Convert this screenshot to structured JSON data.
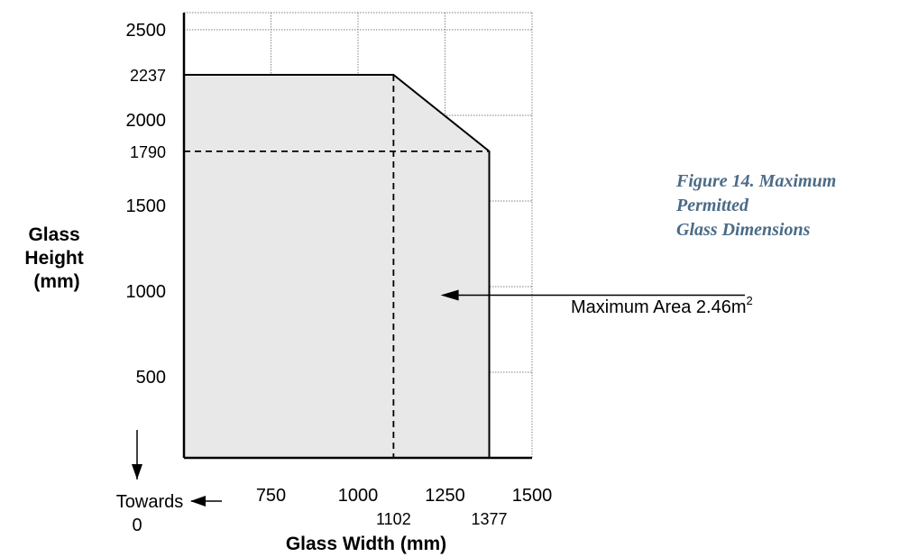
{
  "caption": {
    "line1": "Figure 14. Maximum Permitted",
    "line2": "Glass Dimensions"
  },
  "chart_data": {
    "type": "area",
    "title": "",
    "xlabel": "Glass Width (mm)",
    "ylabel_lines": [
      "Glass",
      "Height",
      "(mm)"
    ],
    "xlim": [
      500,
      1500
    ],
    "ylim": [
      0,
      2600
    ],
    "x_ticks": [
      {
        "value": 750,
        "label": "750"
      },
      {
        "value": 1000,
        "label": "1000"
      },
      {
        "value": 1250,
        "label": "1250"
      },
      {
        "value": 1500,
        "label": "1500"
      }
    ],
    "x_sub_ticks": [
      {
        "value": 1102,
        "label": "1102"
      },
      {
        "value": 1377,
        "label": "1377"
      }
    ],
    "y_ticks": [
      {
        "value": 500,
        "label": "500"
      },
      {
        "value": 1000,
        "label": "1000"
      },
      {
        "value": 1500,
        "label": "1500"
      },
      {
        "value": 1790,
        "label": "1790"
      },
      {
        "value": 2000,
        "label": "2000"
      },
      {
        "value": 2237,
        "label": "2237"
      },
      {
        "value": 2500,
        "label": "2500"
      }
    ],
    "grid": true,
    "boundary": [
      {
        "x": 500,
        "y": 2237
      },
      {
        "x": 1102,
        "y": 2237
      },
      {
        "x": 1377,
        "y": 1790
      },
      {
        "x": 1377,
        "y": 0
      }
    ],
    "reference_lines": [
      {
        "orientation": "vertical",
        "x": 1102,
        "y_to": 2237
      },
      {
        "orientation": "horizontal",
        "y": 1790,
        "x_to": 1377
      }
    ],
    "fill_color": "#e8e8e8",
    "annotation": {
      "text": "Maximum Area 2.46m",
      "superscript": "2",
      "arrow_to": {
        "x": 1170,
        "y": 950
      }
    },
    "origin_note": {
      "line1": "Towards",
      "line2": "0"
    }
  }
}
